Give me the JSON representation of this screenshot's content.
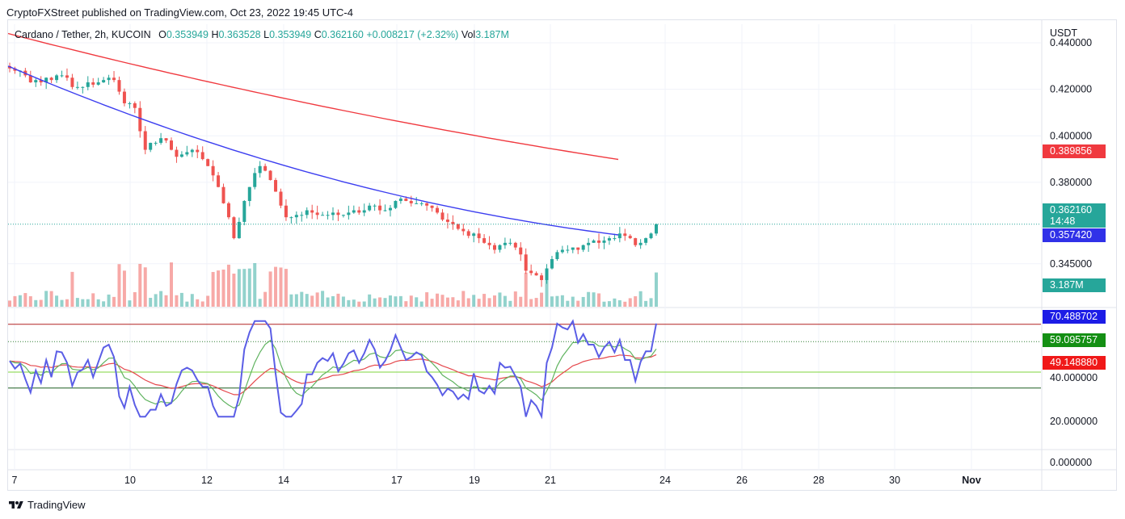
{
  "header": {
    "published": "CryptoFXStreet published on TradingView.com, Oct 23, 2022 19:45 UTC-4"
  },
  "legend": {
    "symbol": "Cardano / Tether, 2h, KUCOIN",
    "open_label": "O",
    "open": "0.353949",
    "high_label": "H",
    "high": "0.363528",
    "low_label": "L",
    "low": "0.353949",
    "close_label": "C",
    "close": "0.362160",
    "change": "+0.008217 (+2.32%)",
    "vol_label": "Vol",
    "vol": "3.187M"
  },
  "price_axis": {
    "unit": "USDT",
    "ticks": [
      "0.440000",
      "0.420000",
      "0.400000",
      "0.380000",
      "0.345000"
    ],
    "tick_values": [
      0.44,
      0.42,
      0.4,
      0.38,
      0.345
    ]
  },
  "tags": {
    "ma_red": "0.389856",
    "last_price": "0.362160",
    "countdown": "14:48",
    "ma_blue": "0.357420",
    "volume": "3.187M",
    "rsi": "70.488702",
    "rsi_ma_green": "59.095757",
    "rsi_ma_red": "49.148880"
  },
  "osc_axis": {
    "ticks": [
      "40.000000",
      "20.000000",
      "0.000000"
    ],
    "tick_values": [
      40,
      20,
      0
    ]
  },
  "time_axis": [
    "7",
    "10",
    "12",
    "14",
    "17",
    "19",
    "21",
    "24",
    "26",
    "28",
    "30",
    "Nov"
  ],
  "footer": {
    "brand": "TradingView"
  },
  "colors": {
    "up": "#26a69a",
    "down": "#ef5350",
    "ma_slow": "#f0393f",
    "ma_fast": "#3c3ef0",
    "rsi": "#5b5ee6",
    "rsi_ma_green": "#5fb35f",
    "rsi_ma_red": "#e5484d",
    "level_red": "#b22222",
    "level_green": "#7fd63c",
    "level_dark": "#1b5e20"
  },
  "chart_data": {
    "type": "candlestick",
    "pair": "Cardano / Tether",
    "timeframe": "2h",
    "exchange": "KUCOIN",
    "price_closes": [
      0.429,
      0.428,
      0.428,
      0.426,
      0.423,
      0.424,
      0.423,
      0.425,
      0.424,
      0.426,
      0.426,
      0.425,
      0.421,
      0.421,
      0.421,
      0.423,
      0.422,
      0.423,
      0.424,
      0.425,
      0.424,
      0.419,
      0.414,
      0.414,
      0.412,
      0.402,
      0.394,
      0.397,
      0.397,
      0.399,
      0.398,
      0.394,
      0.391,
      0.392,
      0.393,
      0.394,
      0.393,
      0.39,
      0.387,
      0.383,
      0.378,
      0.371,
      0.365,
      0.356,
      0.363,
      0.372,
      0.378,
      0.384,
      0.387,
      0.385,
      0.381,
      0.376,
      0.37,
      0.365,
      0.365,
      0.366,
      0.366,
      0.368,
      0.367,
      0.366,
      0.366,
      0.366,
      0.367,
      0.366,
      0.366,
      0.367,
      0.368,
      0.367,
      0.368,
      0.37,
      0.37,
      0.368,
      0.368,
      0.369,
      0.372,
      0.373,
      0.372,
      0.371,
      0.371,
      0.371,
      0.37,
      0.369,
      0.367,
      0.364,
      0.363,
      0.362,
      0.36,
      0.359,
      0.357,
      0.358,
      0.356,
      0.354,
      0.353,
      0.351,
      0.353,
      0.354,
      0.354,
      0.352,
      0.349,
      0.342,
      0.341,
      0.34,
      0.338,
      0.343,
      0.347,
      0.35,
      0.351,
      0.351,
      0.352,
      0.351,
      0.353,
      0.354,
      0.355,
      0.354,
      0.355,
      0.356,
      0.356,
      0.358,
      0.357,
      0.356,
      0.353,
      0.354,
      0.356,
      0.358,
      0.362
    ],
    "ma_fast_endpoints": {
      "start": 0.43,
      "end": 0.35742
    },
    "ma_slow_endpoints": {
      "start": 0.444,
      "end": 0.389856
    },
    "rsi_levels": [
      70,
      40,
      30
    ],
    "rsi_last": 70.488702,
    "rsi_ma_green_last": 59.095757,
    "rsi_ma_red_last": 49.14888,
    "price_ylim": [
      0.33,
      0.448
    ],
    "osc_ylim": [
      0,
      80
    ]
  }
}
